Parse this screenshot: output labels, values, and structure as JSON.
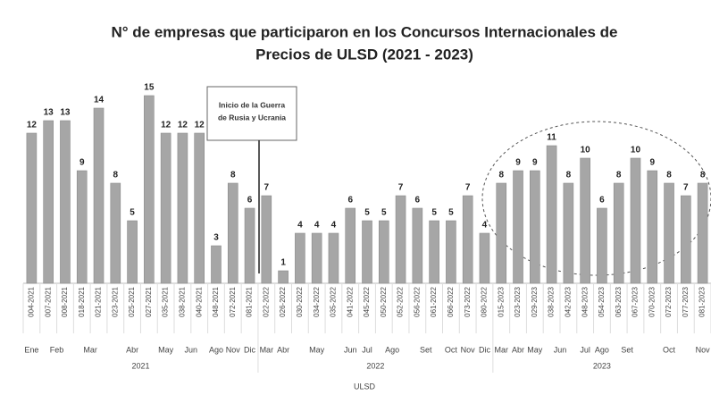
{
  "chart_data": {
    "type": "bar",
    "title": [
      "N° de empresas que participaron en los Concursos Internacionales de",
      "Precios de ULSD (2021 - 2023)"
    ],
    "categories": [
      "004-2021",
      "007-2021",
      "008-2021",
      "018-2021",
      "021-2021",
      "023-2021",
      "025-2021",
      "027-2021",
      "035-2021",
      "038-2021",
      "040-2021",
      "048-2021",
      "072-2021",
      "081-2021",
      "022-2022",
      "026-2022",
      "030-2022",
      "034-2022",
      "035-2022",
      "041-2022",
      "045-2022",
      "050-2022",
      "052-2022",
      "056-2022",
      "061-2022",
      "066-2022",
      "073-2022",
      "080-2022",
      "015-2023",
      "023-2023",
      "029-2023",
      "038-2023",
      "042-2023",
      "048-2023",
      "054-2023",
      "063-2023",
      "067-2023",
      "070-2023",
      "072-2023",
      "077-2023",
      "081-2023"
    ],
    "values": [
      12,
      13,
      13,
      9,
      14,
      8,
      5,
      15,
      12,
      12,
      12,
      3,
      8,
      6,
      7,
      1,
      4,
      4,
      4,
      6,
      5,
      5,
      7,
      6,
      5,
      5,
      7,
      4,
      8,
      9,
      9,
      11,
      8,
      10,
      6,
      8,
      10,
      9,
      8,
      7,
      8
    ],
    "month": [
      "Ene",
      "Feb",
      "Feb",
      "Mar",
      "Mar",
      "Abr",
      "Abr",
      "Abr",
      "May",
      "Jun",
      "Jun",
      "Ago",
      "Nov",
      "Dic",
      "Mar",
      "Abr",
      "May",
      "May",
      "May",
      "Jun",
      "Jul",
      "Ago",
      "Ago",
      "Set",
      "Set",
      "Oct",
      "Nov",
      "Dic",
      "Mar",
      "Abr",
      "May",
      "Jun",
      "Jun",
      "Jul",
      "Ago",
      "Set",
      "Set",
      "Oct",
      "Oct",
      "Oct",
      "Nov"
    ],
    "year": [
      "2021",
      "2021",
      "2021",
      "2021",
      "2021",
      "2021",
      "2021",
      "2021",
      "2021",
      "2021",
      "2021",
      "2021",
      "2021",
      "2021",
      "2022",
      "2022",
      "2022",
      "2022",
      "2022",
      "2022",
      "2022",
      "2022",
      "2022",
      "2022",
      "2022",
      "2022",
      "2022",
      "2022",
      "2023",
      "2023",
      "2023",
      "2023",
      "2023",
      "2023",
      "2023",
      "2023",
      "2023",
      "2023",
      "2023",
      "2023",
      "2023"
    ],
    "x_label": "ULSD",
    "annotation": [
      "Inicio de la Guerra",
      "de Rusia y Ucrania"
    ],
    "color": "#a6a6a6",
    "ylim": [
      0,
      16
    ]
  }
}
